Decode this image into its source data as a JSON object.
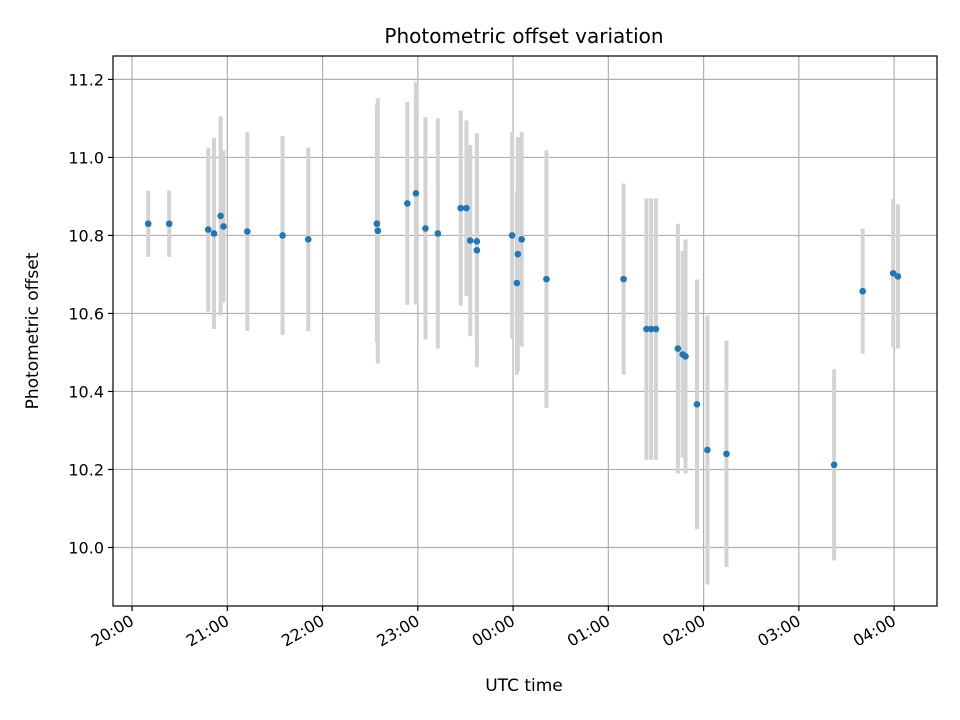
{
  "chart_data": {
    "type": "scatter",
    "title": "Photometric offset variation",
    "xlabel": "UTC time",
    "ylabel": "Photometric offset",
    "x_unit": "hours since 20:00 UTC",
    "xlim": [
      -0.2,
      8.45
    ],
    "ylim": [
      9.85,
      11.26
    ],
    "grid": true,
    "x_ticks": [
      {
        "value": 0,
        "label": "20:00"
      },
      {
        "value": 1,
        "label": "21:00"
      },
      {
        "value": 2,
        "label": "22:00"
      },
      {
        "value": 3,
        "label": "23:00"
      },
      {
        "value": 4,
        "label": "00:00"
      },
      {
        "value": 5,
        "label": "01:00"
      },
      {
        "value": 6,
        "label": "02:00"
      },
      {
        "value": 7,
        "label": "03:00"
      },
      {
        "value": 8,
        "label": "04:00"
      }
    ],
    "y_ticks": [
      {
        "value": 10.0,
        "label": "10.0"
      },
      {
        "value": 10.2,
        "label": "10.2"
      },
      {
        "value": 10.4,
        "label": "10.4"
      },
      {
        "value": 10.6,
        "label": "10.6"
      },
      {
        "value": 10.8,
        "label": "10.8"
      },
      {
        "value": 11.0,
        "label": "11.0"
      },
      {
        "value": 11.2,
        "label": "11.2"
      }
    ],
    "marker_color": "#1f77b4",
    "errorbar_color": "#d3d3d3",
    "points": [
      {
        "x": 0.17,
        "y": 10.83,
        "err": 0.085
      },
      {
        "x": 0.39,
        "y": 10.83,
        "err": 0.085
      },
      {
        "x": 0.8,
        "y": 10.815,
        "err": 0.21
      },
      {
        "x": 0.86,
        "y": 10.805,
        "err": 0.245
      },
      {
        "x": 0.93,
        "y": 10.85,
        "err": 0.255
      },
      {
        "x": 0.96,
        "y": 10.823,
        "err": 0.195
      },
      {
        "x": 1.21,
        "y": 10.81,
        "err": 0.255
      },
      {
        "x": 1.58,
        "y": 10.8,
        "err": 0.255
      },
      {
        "x": 1.85,
        "y": 10.79,
        "err": 0.235
      },
      {
        "x": 2.57,
        "y": 10.83,
        "err": 0.305
      },
      {
        "x": 2.58,
        "y": 10.812,
        "err": 0.34
      },
      {
        "x": 2.89,
        "y": 10.882,
        "err": 0.26
      },
      {
        "x": 2.98,
        "y": 10.908,
        "err": 0.285
      },
      {
        "x": 3.08,
        "y": 10.818,
        "err": 0.285
      },
      {
        "x": 3.21,
        "y": 10.805,
        "err": 0.295
      },
      {
        "x": 3.45,
        "y": 10.87,
        "err": 0.25
      },
      {
        "x": 3.51,
        "y": 10.87,
        "err": 0.225
      },
      {
        "x": 3.55,
        "y": 10.787,
        "err": 0.245
      },
      {
        "x": 3.62,
        "y": 10.785,
        "err": 0.255
      },
      {
        "x": 3.62,
        "y": 10.762,
        "err": 0.3
      },
      {
        "x": 3.99,
        "y": 10.8,
        "err": 0.265
      },
      {
        "x": 4.04,
        "y": 10.678,
        "err": 0.235
      },
      {
        "x": 4.05,
        "y": 10.752,
        "err": 0.3
      },
      {
        "x": 4.09,
        "y": 10.79,
        "err": 0.275
      },
      {
        "x": 4.35,
        "y": 10.688,
        "err": 0.33
      },
      {
        "x": 5.16,
        "y": 10.688,
        "err": 0.245
      },
      {
        "x": 5.4,
        "y": 10.56,
        "err": 0.335
      },
      {
        "x": 5.45,
        "y": 10.56,
        "err": 0.335
      },
      {
        "x": 5.5,
        "y": 10.56,
        "err": 0.335
      },
      {
        "x": 5.73,
        "y": 10.51,
        "err": 0.32
      },
      {
        "x": 5.78,
        "y": 10.495,
        "err": 0.265
      },
      {
        "x": 5.81,
        "y": 10.49,
        "err": 0.3
      },
      {
        "x": 5.93,
        "y": 10.367,
        "err": 0.32
      },
      {
        "x": 6.04,
        "y": 10.25,
        "err": 0.345
      },
      {
        "x": 6.24,
        "y": 10.24,
        "err": 0.29
      },
      {
        "x": 7.37,
        "y": 10.212,
        "err": 0.245
      },
      {
        "x": 7.67,
        "y": 10.657,
        "err": 0.16
      },
      {
        "x": 7.99,
        "y": 10.703,
        "err": 0.19
      },
      {
        "x": 8.04,
        "y": 10.695,
        "err": 0.185
      }
    ]
  }
}
